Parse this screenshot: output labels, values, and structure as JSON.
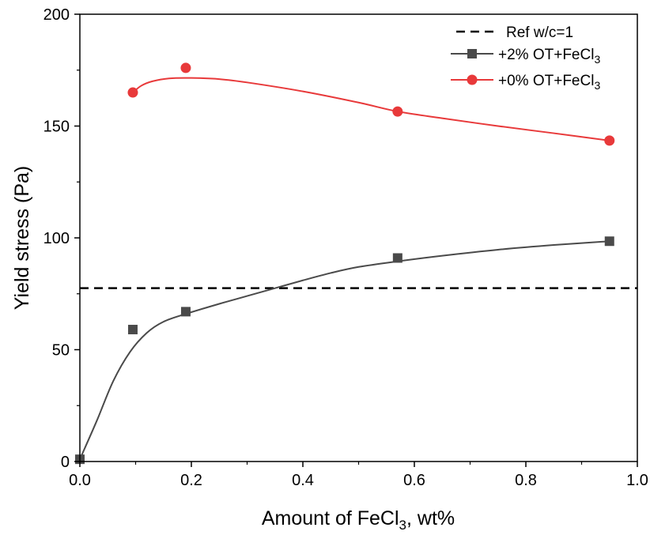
{
  "chart_data": {
    "type": "line",
    "xlabel": {
      "main": "Amount of FeCl",
      "sub": "3",
      "tail": ", wt%"
    },
    "ylabel": "Yield stress (Pa)",
    "xlim": [
      0.0,
      1.0
    ],
    "ylim": [
      0,
      200
    ],
    "x_ticks": [
      "0.0",
      "0.2",
      "0.4",
      "0.6",
      "0.8",
      "1.0"
    ],
    "y_ticks": [
      "0",
      "50",
      "100",
      "150",
      "200"
    ],
    "grid": false,
    "legend_position": "top-right",
    "reference_line": {
      "name": "Ref w/c=1",
      "y": 77.5,
      "color": "#000000",
      "style": "dashed"
    },
    "series": [
      {
        "name": "+2% OT+FeCl",
        "name_sub": "3",
        "marker": "square",
        "color": "#4a4a4a",
        "points": [
          {
            "x": 0.0,
            "y": 1
          },
          {
            "x": 0.095,
            "y": 59
          },
          {
            "x": 0.19,
            "y": 67
          },
          {
            "x": 0.57,
            "y": 91
          },
          {
            "x": 0.95,
            "y": 98.5
          }
        ],
        "fit_curve": [
          [
            0.0,
            1
          ],
          [
            0.03,
            18
          ],
          [
            0.06,
            36
          ],
          [
            0.09,
            49
          ],
          [
            0.12,
            57.5
          ],
          [
            0.15,
            62.5
          ],
          [
            0.19,
            66
          ],
          [
            0.25,
            70.5
          ],
          [
            0.3,
            74
          ],
          [
            0.35,
            77.5
          ],
          [
            0.4,
            81
          ],
          [
            0.45,
            84.3
          ],
          [
            0.5,
            87
          ],
          [
            0.57,
            89.5
          ],
          [
            0.65,
            92
          ],
          [
            0.75,
            94.7
          ],
          [
            0.85,
            96.8
          ],
          [
            0.95,
            98.5
          ]
        ]
      },
      {
        "name": "+0% OT+FeCl",
        "name_sub": "3",
        "marker": "circle",
        "color": "#e8393a",
        "points": [
          {
            "x": 0.095,
            "y": 165
          },
          {
            "x": 0.19,
            "y": 176
          },
          {
            "x": 0.57,
            "y": 156.5
          },
          {
            "x": 0.95,
            "y": 143.5
          }
        ],
        "fit_curve": [
          [
            0.095,
            165
          ],
          [
            0.11,
            168
          ],
          [
            0.13,
            170
          ],
          [
            0.16,
            171.3
          ],
          [
            0.2,
            171.5
          ],
          [
            0.25,
            171
          ],
          [
            0.3,
            169.5
          ],
          [
            0.4,
            165.5
          ],
          [
            0.5,
            160.5
          ],
          [
            0.57,
            156.5
          ],
          [
            0.65,
            153.5
          ],
          [
            0.75,
            150
          ],
          [
            0.85,
            146.8
          ],
          [
            0.95,
            143.5
          ]
        ]
      }
    ]
  }
}
